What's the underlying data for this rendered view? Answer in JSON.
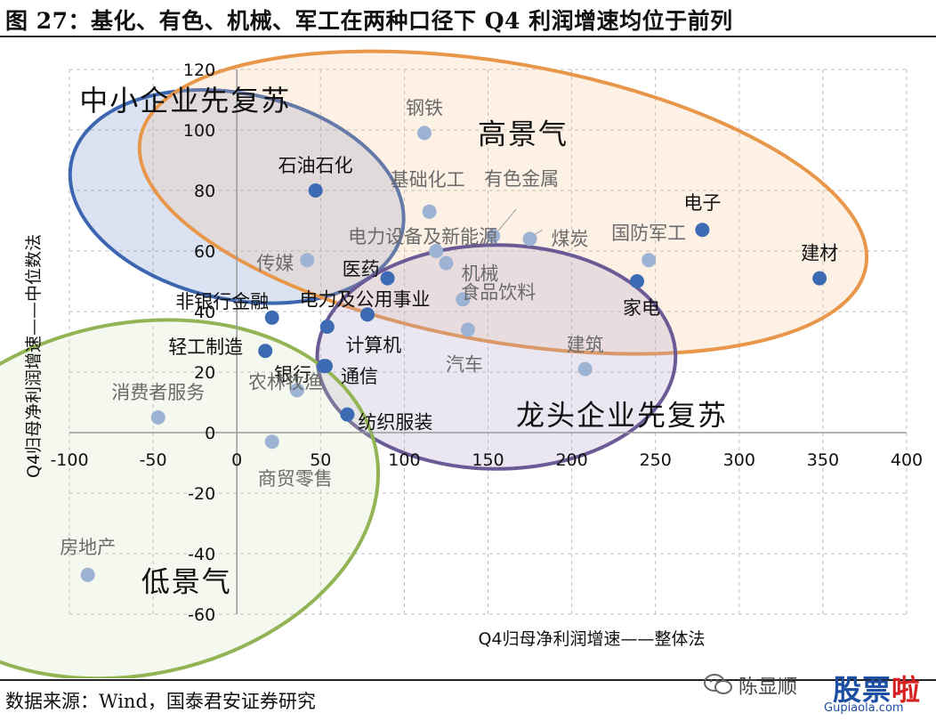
{
  "header": {
    "title": "图 27：基化、有色、机械、军工在两种口径下 Q4 利润增速均位于前列"
  },
  "footer": {
    "source": "数据来源：Wind，国泰君安证券研究"
  },
  "watermark": {
    "name": "陈显顺",
    "logo_a": "股票",
    "logo_b": "啦",
    "url": "Gupiaola.com",
    "icon": "wechat-icon"
  },
  "chart_data": {
    "type": "scatter",
    "title": "",
    "xlabel": "Q4归母净利润增速——整体法",
    "ylabel": "Q4归母净利润增速——中位数法",
    "xlim": [
      -100,
      400
    ],
    "ylim": [
      -60,
      120
    ],
    "xticks": [
      -100,
      -50,
      0,
      50,
      100,
      150,
      200,
      250,
      300,
      350,
      400
    ],
    "yticks": [
      -60,
      -40,
      -20,
      0,
      20,
      40,
      60,
      80,
      100,
      120
    ],
    "grid": "dashed",
    "colors": {
      "point": "#3d6bb3",
      "grid": "#bfbfbf",
      "circle_blue": "#3d66b0",
      "circle_orange": "#e8974a",
      "circle_purple": "#6a5a96",
      "circle_green": "#93b455"
    },
    "points": [
      {
        "label": "钢铁",
        "x": 112,
        "y": 99
      },
      {
        "label": "石油石化",
        "x": 47,
        "y": 80
      },
      {
        "label": "基础化工",
        "x": 115,
        "y": 73
      },
      {
        "label": "有色金属",
        "x": 153,
        "y": 65
      },
      {
        "label": "煤炭",
        "x": 175,
        "y": 64
      },
      {
        "label": "电子",
        "x": 278,
        "y": 67
      },
      {
        "label": "国防军工",
        "x": 246,
        "y": 57
      },
      {
        "label": "建材",
        "x": 348,
        "y": 51
      },
      {
        "label": "电力设备及新能源",
        "x": 119,
        "y": 60
      },
      {
        "label": "机械",
        "x": 125,
        "y": 56
      },
      {
        "label": "传媒",
        "x": 42,
        "y": 57
      },
      {
        "label": "医药",
        "x": 90,
        "y": 51
      },
      {
        "label": "家电",
        "x": 239,
        "y": 50
      },
      {
        "label": "非银行金融",
        "x": 21,
        "y": 38
      },
      {
        "label": "电力及公用事业",
        "x": 78,
        "y": 39
      },
      {
        "label": "食品饮料",
        "x": 135,
        "y": 44
      },
      {
        "label": "汽车",
        "x": 138,
        "y": 34
      },
      {
        "label": "计算机",
        "x": 54,
        "y": 35
      },
      {
        "label": "轻工制造",
        "x": 17,
        "y": 27
      },
      {
        "label": "银行",
        "x": 52,
        "y": 22
      },
      {
        "label": "通信",
        "x": 53,
        "y": 22
      },
      {
        "label": "建筑",
        "x": 208,
        "y": 21
      },
      {
        "label": "消费者服务",
        "x": -47,
        "y": 5
      },
      {
        "label": "农林牧渔",
        "x": 36,
        "y": 14
      },
      {
        "label": "纺织服装",
        "x": 66,
        "y": 6
      },
      {
        "label": "商贸零售",
        "x": 21,
        "y": -3
      },
      {
        "label": "房地产",
        "x": -89,
        "y": -47
      }
    ],
    "annotations": [
      {
        "text": "中小企业先复苏"
      },
      {
        "text": "高景气"
      },
      {
        "text": "龙头企业先复苏"
      },
      {
        "text": "低景气"
      }
    ]
  }
}
